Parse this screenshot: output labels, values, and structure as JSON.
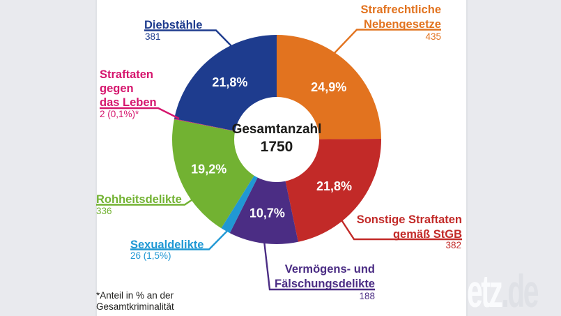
{
  "background": {
    "band_color": "#e9eaee",
    "panel_color": "#ffffff"
  },
  "chart_data": {
    "type": "pie",
    "subtype": "donut",
    "title": "Gesamtanzahl 1750",
    "center_label": "Gesamtanzahl",
    "center_value": "1750",
    "total": 1750,
    "start_angle_deg": 0,
    "direction": "clockwise",
    "inner_radius_ratio": 0.41,
    "legend": "none",
    "slices": [
      {
        "label": "Strafrechtliche Nebengesetze",
        "value": 435,
        "pct": 24.9,
        "inside_label": "24,9%",
        "color": "#e2731f"
      },
      {
        "label": "Sonstige Straftaten gemäß StGB",
        "value": 382,
        "pct": 21.8,
        "inside_label": "21,8%",
        "color": "#c22a28"
      },
      {
        "label": "Vermögens- und Fälschungsdelikte",
        "value": 188,
        "pct": 10.7,
        "inside_label": "10,7%",
        "color": "#4b2d84"
      },
      {
        "label": "Sexualdelikte",
        "value": 26,
        "pct": 1.5,
        "inside_label": null,
        "color": "#2098d4"
      },
      {
        "label": "Rohheitsdelikte",
        "value": 336,
        "pct": 19.2,
        "inside_label": "19,2%",
        "color": "#72b232"
      },
      {
        "label": "Straftaten gegen das Leben",
        "value": 2,
        "pct": 0.1,
        "inside_label": null,
        "color": "#d5156d"
      },
      {
        "label": "Diebstähle",
        "value": 381,
        "pct": 21.8,
        "inside_label": "21,8%",
        "color": "#1e3c8e"
      }
    ]
  },
  "callouts": {
    "diebstaehle": {
      "title": "Diebstähle",
      "value": "381"
    },
    "nebengesetze": {
      "line1": "Strafrechtliche",
      "line2": "Nebengesetze",
      "value": "435"
    },
    "leben": {
      "line1": "Straftaten",
      "line2": "gegen",
      "line3": "das Leben",
      "value": "2 (0,1%)*"
    },
    "rohheit": {
      "title": "Rohheitsdelikte",
      "value": "336"
    },
    "sexual": {
      "title": "Sexualdelikte",
      "value": "26 (1,5%)"
    },
    "vermoegen": {
      "line1": "Vermögens- und",
      "line2": "Fälschungsdelikte",
      "value": "188"
    },
    "sonstige": {
      "line1": "Sonstige Straftaten",
      "line2": "gemäß StGB",
      "value": "382"
    }
  },
  "footnote": {
    "line1": "*Anteil in % an der",
    "line2": "Gesamtkriminalität"
  },
  "watermark": {
    "part1": "etz",
    "part2": ".de",
    "color1": "#fafbfd",
    "color2": "#dfe1e6"
  }
}
